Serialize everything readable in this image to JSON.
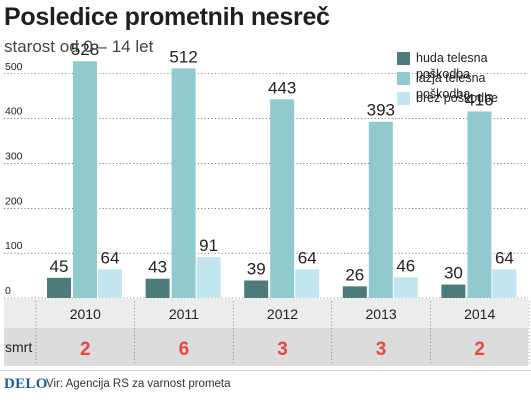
{
  "title": "Posledice prometnih nesreč",
  "subtitle": "starost od 0 – 14 let",
  "legend": [
    {
      "label": "huda telesna poškodba",
      "color": "#4d7a7a"
    },
    {
      "label": "lažja telesna poškodba",
      "color": "#90cacf"
    },
    {
      "label": "brez poškodbe",
      "color": "#c2e6f0"
    }
  ],
  "chart_data": {
    "type": "bar",
    "categories": [
      "2010",
      "2011",
      "2012",
      "2013",
      "2014"
    ],
    "series": [
      {
        "name": "huda telesna poškodba",
        "values": [
          45,
          43,
          39,
          26,
          30
        ]
      },
      {
        "name": "lažja telesna poškodba",
        "values": [
          528,
          512,
          443,
          393,
          416
        ]
      },
      {
        "name": "brez poškodbe",
        "values": [
          64,
          91,
          64,
          46,
          64
        ]
      }
    ],
    "yticks": [
      0,
      100,
      200,
      300,
      400,
      500
    ],
    "ylim": [
      0,
      560
    ],
    "grid": true,
    "legend_position": "top-right"
  },
  "deaths": {
    "label": "smrt",
    "values": [
      2,
      6,
      3,
      3,
      2
    ],
    "color": "#e8473f"
  },
  "footer": {
    "logo": "DELO",
    "source": "Vir: Agencija RS za varnost prometa"
  }
}
